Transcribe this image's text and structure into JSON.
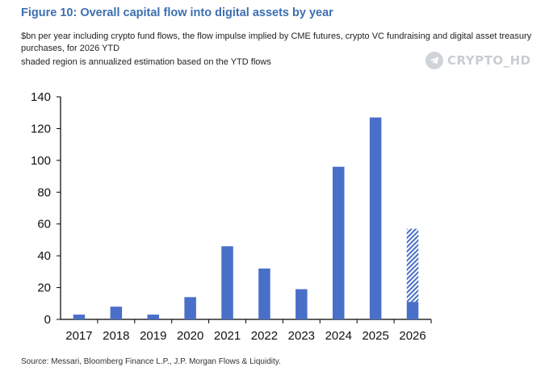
{
  "title": "Figure 10: Overall capital flow into digital assets by year",
  "subtitle": "$bn per year including crypto fund flows, the flow impulse implied by CME futures, crypto VC fundraising and digital asset treasury purchases, for 2026 YTD",
  "note": "shaded region is annualized estimation based on the YTD flows",
  "watermark": {
    "text": "CRYPTO_HD",
    "icon": "telegram-icon"
  },
  "source": "Source: Messari, Bloomberg Finance L.P., J.P. Morgan Flows & Liquidity.",
  "colors": {
    "bar": "#4a6fc8",
    "title": "#3c6fb0"
  },
  "chart_data": {
    "type": "bar",
    "categories": [
      "2017",
      "2018",
      "2019",
      "2020",
      "2021",
      "2022",
      "2023",
      "2024",
      "2025",
      "2026"
    ],
    "values": [
      3,
      8,
      3,
      14,
      46,
      32,
      19,
      96,
      127,
      11
    ],
    "shaded": {
      "category": "2026",
      "from": 11,
      "to": 57,
      "meaning": "annualized estimation"
    },
    "yticks": [
      0,
      20,
      40,
      60,
      80,
      100,
      120,
      140
    ],
    "ylim": [
      0,
      140
    ],
    "grid": false,
    "legend": "none"
  }
}
